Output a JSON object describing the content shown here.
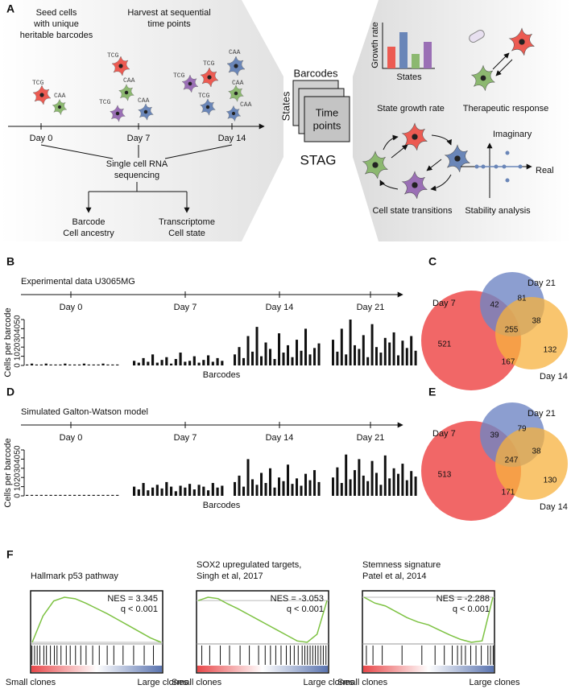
{
  "panel_a": {
    "label": "A",
    "seed": [
      "Seed cells",
      "with unique",
      "heritable barcodes"
    ],
    "harvest": [
      "Harvest at sequential",
      "time points"
    ],
    "days": [
      "Day 0",
      "Day 7",
      "Day 14"
    ],
    "barcode_tags": [
      "TCG",
      "CAA"
    ],
    "sequencing": [
      "Single cell RNA",
      "sequencing"
    ],
    "barcode": [
      "Barcode",
      "Cell ancestry"
    ],
    "transcriptome": [
      "Transcriptome",
      "Cell state"
    ],
    "stack": {
      "barcodes": "Barcodes",
      "states": "States",
      "time": [
        "Time",
        "points"
      ],
      "name": "STAG"
    },
    "growth": {
      "ylabel": "Growth rate",
      "xlabel": "States",
      "values": [
        0.45,
        0.75,
        0.3,
        0.55
      ],
      "colors": [
        "#ec5b52",
        "#6a86b8",
        "#8cb870",
        "#9a6fb5"
      ]
    },
    "captions": [
      "State growth rate",
      "Therapeutic response",
      "Cell state transitions",
      "Stability analysis"
    ],
    "axes": [
      "Imaginary",
      "Real"
    ]
  },
  "panel_b": {
    "label": "B",
    "title": "Experimental data U3065MG",
    "days": [
      "Day 0",
      "Day 7",
      "Day 14",
      "Day 21"
    ],
    "ylabel": "Cells per barcode",
    "xlabel": "Barcodes",
    "ylim": [
      0,
      50
    ],
    "yticks": [
      0,
      10,
      20,
      30,
      40,
      50
    ],
    "groups": [
      [
        1,
        2,
        1,
        1,
        2,
        1,
        1,
        1,
        2,
        1,
        1,
        1,
        2,
        1,
        1,
        1,
        2,
        1,
        1,
        1
      ],
      [
        5,
        3,
        8,
        4,
        12,
        3,
        6,
        9,
        2,
        7,
        14,
        4,
        5,
        10,
        3,
        6,
        11,
        4,
        8,
        5
      ],
      [
        12,
        20,
        8,
        32,
        15,
        42,
        10,
        25,
        18,
        7,
        35,
        14,
        22,
        9,
        28,
        16,
        40,
        12,
        19,
        24
      ],
      [
        28,
        15,
        40,
        12,
        50,
        22,
        18,
        33,
        9,
        45,
        20,
        14,
        30,
        25,
        36,
        11,
        27,
        19,
        32,
        16
      ]
    ]
  },
  "panel_c": {
    "label": "C",
    "sets": [
      "Day 7",
      "Day 21",
      "Day 14"
    ],
    "counts": {
      "day7_only": "521",
      "day21_only": "81",
      "day7_day21": "42",
      "day21_day14": "38",
      "all": "255",
      "day7_day14": "167",
      "day14_only": "132"
    }
  },
  "panel_d": {
    "label": "D",
    "title": "Simulated Galton-Watson model",
    "days": [
      "Day 0",
      "Day 7",
      "Day 14",
      "Day 21"
    ],
    "ylabel": "Cells per barcode",
    "xlabel": "Barcodes",
    "ylim": [
      0,
      50
    ],
    "yticks": [
      0,
      10,
      20,
      30,
      40,
      50
    ],
    "groups": [
      [
        1,
        1,
        1,
        1,
        1,
        1,
        1,
        1,
        1,
        1,
        1,
        1,
        1,
        1,
        1,
        1,
        1,
        1,
        1,
        1
      ],
      [
        10,
        7,
        14,
        6,
        9,
        12,
        8,
        15,
        10,
        5,
        11,
        9,
        13,
        7,
        12,
        10,
        6,
        14,
        9,
        11
      ],
      [
        15,
        22,
        10,
        40,
        18,
        12,
        25,
        14,
        30,
        9,
        20,
        16,
        34,
        13,
        19,
        11,
        24,
        17,
        28,
        15
      ],
      [
        20,
        31,
        14,
        45,
        18,
        28,
        40,
        22,
        16,
        38,
        25,
        12,
        44,
        19,
        30,
        24,
        35,
        17,
        27,
        21
      ]
    ]
  },
  "panel_e": {
    "label": "E",
    "sets": [
      "Day 7",
      "Day 21",
      "Day 14"
    ],
    "counts": {
      "day7_only": "513",
      "day21_only": "79",
      "day7_day21": "39",
      "day21_day14": "38",
      "all": "247",
      "day7_day14": "171",
      "day14_only": "130"
    }
  },
  "panel_f": {
    "label": "F",
    "xlabels": [
      "Small clones",
      "Large clones"
    ],
    "plots": [
      {
        "title": [
          "Hallmark p53 pathway"
        ],
        "nes": "NES = 3.345",
        "q": "q < 0.001",
        "es": [
          0,
          0.35,
          0.55,
          0.6,
          0.58,
          0.52,
          0.45,
          0.38,
          0.3,
          0.22,
          0.14,
          0.06,
          0
        ],
        "hits": [
          0.01,
          0.03,
          0.05,
          0.07,
          0.1,
          0.12,
          0.15,
          0.18,
          0.2,
          0.23,
          0.27,
          0.3,
          0.34,
          0.38,
          0.42,
          0.47,
          0.52,
          0.58,
          0.63,
          0.7,
          0.78,
          0.86,
          0.93
        ]
      },
      {
        "title": [
          "SOX2 upregulated targets,",
          "Singh et al, 2017"
        ],
        "nes": "NES = -3.053",
        "q": "q < 0.001",
        "es": [
          0,
          0.05,
          0.03,
          -0.05,
          -0.12,
          -0.2,
          -0.28,
          -0.36,
          -0.44,
          -0.52,
          -0.6,
          -0.62,
          -0.5,
          0
        ],
        "hits": [
          0.04,
          0.1,
          0.18,
          0.25,
          0.33,
          0.4,
          0.47,
          0.52,
          0.56,
          0.6,
          0.64,
          0.68,
          0.71,
          0.74,
          0.77,
          0.8,
          0.82,
          0.84,
          0.86,
          0.88,
          0.9,
          0.92,
          0.94,
          0.96,
          0.98
        ]
      },
      {
        "title": [
          "Stemness signature",
          "Patel et al, 2014"
        ],
        "nes": "NES = -2.288",
        "q": "q < 0.001",
        "es": [
          0,
          -0.08,
          -0.12,
          -0.2,
          -0.28,
          -0.34,
          -0.38,
          -0.45,
          -0.52,
          -0.58,
          -0.62,
          -0.6,
          0
        ],
        "hits": [
          0.03,
          0.08,
          0.15,
          0.3,
          0.45,
          0.55,
          0.62,
          0.68,
          0.72,
          0.75,
          0.78,
          0.82,
          0.86,
          0.9,
          0.95,
          0.97,
          0.99
        ]
      }
    ]
  }
}
